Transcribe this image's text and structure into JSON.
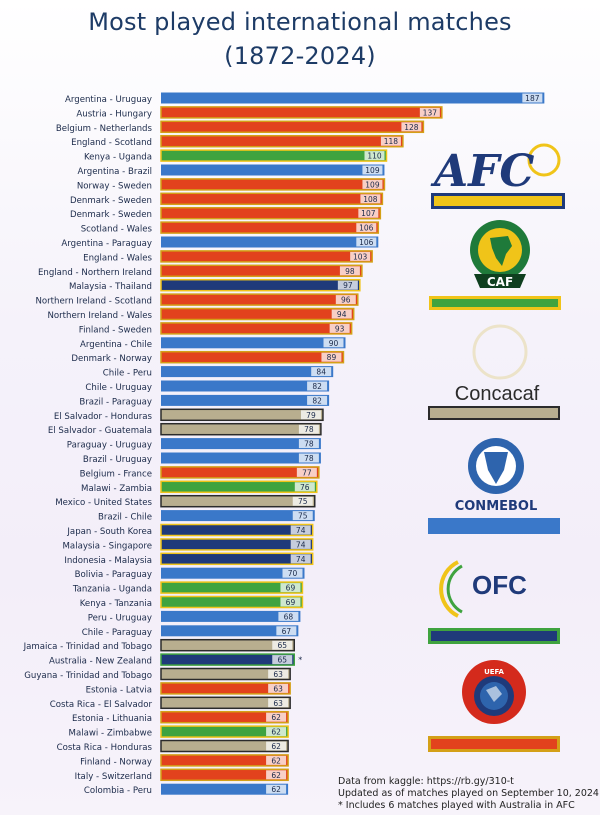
{
  "header": {
    "title_line1": "Most played international matches",
    "title_line2": "(1872-2024)"
  },
  "colors": {
    "AFC": "#1f3a7a",
    "AFC_accent": "#f0c419",
    "CAF": "#3fa33f",
    "CAF_accent": "#f0c419",
    "CONCACAF": "#b8ae8f",
    "CONCACAF_accent": "#2b2b2b",
    "CONMEBOL": "#3a78c9",
    "OFC": "#1f3a7a",
    "OFC_accent": "#3fa33f",
    "UEFA": "#e2421d",
    "UEFA_accent": "#d4a017"
  },
  "legend": {
    "afc_logo_text": "AFC",
    "caf_logo_text": "CAF",
    "concacaf_logo_text": "Concacaf",
    "conmebol_logo_text": "CONMEBOL",
    "ofc_logo_text": "OFC",
    "uefa_logo_text": "UEFA"
  },
  "footer": {
    "line1": "Data from kaggle: https://rb.gy/310-t",
    "line2": "Updated as of matches played on September 10, 2024",
    "line3": "* Includes 6 matches played with Australia in AFC"
  },
  "chart_data": {
    "type": "bar",
    "orientation": "horizontal",
    "title": "Most played international matches (1872-2024)",
    "series": [
      {
        "label": "Argentina - Uruguay",
        "value": 187,
        "conf": "CONMEBOL"
      },
      {
        "label": "Austria - Hungary",
        "value": 137,
        "conf": "UEFA"
      },
      {
        "label": "Belgium - Netherlands",
        "value": 128,
        "conf": "UEFA"
      },
      {
        "label": "England - Scotland",
        "value": 118,
        "conf": "UEFA"
      },
      {
        "label": "Kenya - Uganda",
        "value": 110,
        "conf": "CAF"
      },
      {
        "label": "Argentina - Brazil",
        "value": 109,
        "conf": "CONMEBOL"
      },
      {
        "label": "Norway - Sweden",
        "value": 109,
        "conf": "UEFA"
      },
      {
        "label": "Denmark - Sweden",
        "value": 108,
        "conf": "UEFA"
      },
      {
        "label": "Denmark - Sweden",
        "value": 107,
        "conf": "UEFA"
      },
      {
        "label": "Scotland - Wales",
        "value": 106,
        "conf": "UEFA"
      },
      {
        "label": "Argentina - Paraguay",
        "value": 106,
        "conf": "CONMEBOL"
      },
      {
        "label": "England - Wales",
        "value": 103,
        "conf": "UEFA"
      },
      {
        "label": "England - Northern Ireland",
        "value": 98,
        "conf": "UEFA"
      },
      {
        "label": "Malaysia - Thailand",
        "value": 97,
        "conf": "AFC"
      },
      {
        "label": "Northern Ireland - Scotland",
        "value": 96,
        "conf": "UEFA"
      },
      {
        "label": "Northern Ireland - Wales",
        "value": 94,
        "conf": "UEFA"
      },
      {
        "label": "Finland - Sweden",
        "value": 93,
        "conf": "UEFA"
      },
      {
        "label": "Argentina - Chile",
        "value": 90,
        "conf": "CONMEBOL"
      },
      {
        "label": "Denmark - Norway",
        "value": 89,
        "conf": "UEFA"
      },
      {
        "label": "Chile - Peru",
        "value": 84,
        "conf": "CONMEBOL"
      },
      {
        "label": "Chile - Uruguay",
        "value": 82,
        "conf": "CONMEBOL"
      },
      {
        "label": "Brazil - Paraguay",
        "value": 82,
        "conf": "CONMEBOL"
      },
      {
        "label": "El Salvador - Honduras",
        "value": 79,
        "conf": "CONCACAF"
      },
      {
        "label": "El Salvador - Guatemala",
        "value": 78,
        "conf": "CONCACAF"
      },
      {
        "label": "Paraguay - Uruguay",
        "value": 78,
        "conf": "CONMEBOL"
      },
      {
        "label": "Brazil - Uruguay",
        "value": 78,
        "conf": "CONMEBOL"
      },
      {
        "label": "Belgium - France",
        "value": 77,
        "conf": "UEFA"
      },
      {
        "label": "Malawi - Zambia",
        "value": 76,
        "conf": "CAF"
      },
      {
        "label": "Mexico - United States",
        "value": 75,
        "conf": "CONCACAF"
      },
      {
        "label": "Brazil - Chile",
        "value": 75,
        "conf": "CONMEBOL"
      },
      {
        "label": "Japan - South Korea",
        "value": 74,
        "conf": "AFC"
      },
      {
        "label": "Malaysia - Singapore",
        "value": 74,
        "conf": "AFC"
      },
      {
        "label": "Indonesia - Malaysia",
        "value": 74,
        "conf": "AFC"
      },
      {
        "label": "Bolivia - Paraguay",
        "value": 70,
        "conf": "CONMEBOL"
      },
      {
        "label": "Tanzania - Uganda",
        "value": 69,
        "conf": "CAF"
      },
      {
        "label": "Kenya - Tanzania",
        "value": 69,
        "conf": "CAF"
      },
      {
        "label": "Peru - Uruguay",
        "value": 68,
        "conf": "CONMEBOL"
      },
      {
        "label": "Chile - Paraguay",
        "value": 67,
        "conf": "CONMEBOL"
      },
      {
        "label": "Jamaica - Trinidad and Tobago",
        "value": 65,
        "conf": "CONCACAF"
      },
      {
        "label": "Australia - New Zealand",
        "value": 65,
        "conf": "OFC",
        "note": "*"
      },
      {
        "label": "Guyana - Trinidad and Tobago",
        "value": 63,
        "conf": "CONCACAF"
      },
      {
        "label": "Estonia - Latvia",
        "value": 63,
        "conf": "UEFA"
      },
      {
        "label": "Costa Rica - El Salvador",
        "value": 63,
        "conf": "CONCACAF"
      },
      {
        "label": "Estonia - Lithuania",
        "value": 62,
        "conf": "UEFA"
      },
      {
        "label": "Malawi - Zimbabwe",
        "value": 62,
        "conf": "CAF"
      },
      {
        "label": "Costa Rica - Honduras",
        "value": 62,
        "conf": "CONCACAF"
      },
      {
        "label": "Finland - Norway",
        "value": 62,
        "conf": "UEFA"
      },
      {
        "label": "Italy - Switzerland",
        "value": 62,
        "conf": "UEFA"
      },
      {
        "label": "Colombia - Peru",
        "value": 62,
        "conf": "CONMEBOL"
      }
    ]
  }
}
